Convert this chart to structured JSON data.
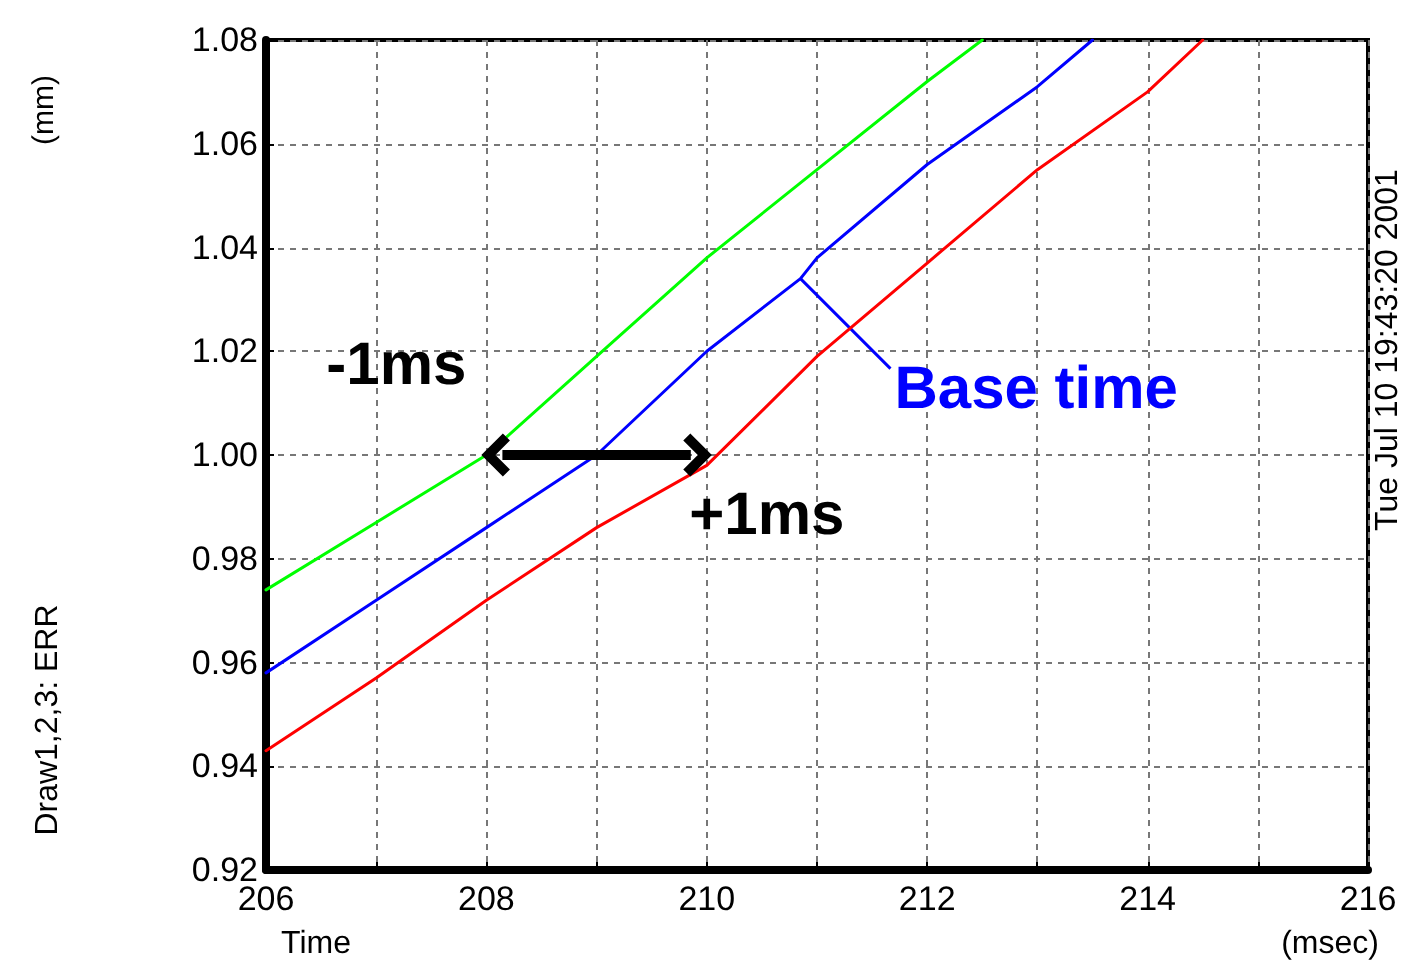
{
  "chart_data": {
    "type": "line",
    "xlabel": "(msec)",
    "ylabel": "(mm)",
    "annotations": [
      "Time",
      "Draw1,2,3: ERR",
      "Tue Jul 10 19:43:20 2001",
      {
        "text": "-1ms",
        "x": 208,
        "y": 1.0
      },
      {
        "text": "+1ms",
        "x": 210,
        "y": 1.0
      },
      {
        "text": "Base time",
        "x": 210.85,
        "y": 1.034
      }
    ],
    "series": [
      {
        "color": "#00ff00",
        "x": [
          206,
          207,
          208,
          209,
          210,
          211,
          212,
          212.5
        ],
        "values": [
          0.974,
          0.987,
          1.0,
          1.019,
          1.038,
          1.055,
          1.072,
          1.08
        ]
      },
      {
        "color": "#0000ff",
        "x": [
          206,
          207,
          208,
          209,
          210,
          210.85,
          211,
          212,
          213,
          213.5
        ],
        "values": [
          0.958,
          0.972,
          0.986,
          1.0,
          1.02,
          1.034,
          1.038,
          1.056,
          1.071,
          1.08
        ]
      },
      {
        "color": "#ff0000",
        "x": [
          206,
          207,
          208,
          209,
          210,
          211,
          212,
          213,
          214,
          214.5
        ],
        "values": [
          0.943,
          0.957,
          0.972,
          0.986,
          0.998,
          1.019,
          1.037,
          1.055,
          1.07,
          1.08
        ]
      }
    ],
    "xlim": [
      206,
      216
    ],
    "xticks": [
      206,
      {
        "value": 207,
        "label": null
      },
      208,
      {
        "value": 209,
        "label": null
      },
      210,
      {
        "value": 211,
        "label": null
      },
      212,
      {
        "value": 213,
        "label": null
      },
      214,
      {
        "value": 215,
        "label": null
      },
      216
    ],
    "ylim": [
      0.92,
      1.08
    ],
    "yticks": [
      0.92,
      0.94,
      0.96,
      0.98,
      {
        "value": 1,
        "label": "1.00"
      },
      1.02,
      1.04,
      1.06,
      1.08
    ],
    "grid": true,
    "marker": "none",
    "line_style": "solid"
  }
}
